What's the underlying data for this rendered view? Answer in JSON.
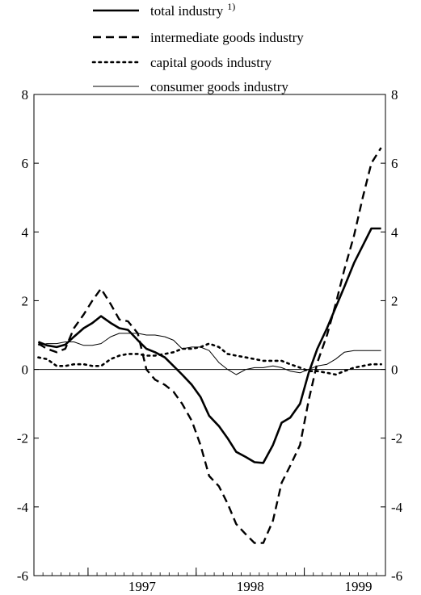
{
  "chart_data": {
    "type": "line",
    "title": "",
    "xlabel": "",
    "ylabel": "",
    "ylim": [
      -6,
      8
    ],
    "yticks": [
      -6,
      -4,
      -2,
      0,
      2,
      4,
      6,
      8
    ],
    "ytick_labels": [
      "-6",
      "-4",
      "-2",
      "0",
      "2",
      "4",
      "6",
      "8"
    ],
    "xrange": [
      1996.5,
      1999.75
    ],
    "xticks": [
      1997,
      1998,
      1999
    ],
    "xtick_labels": [
      "1997",
      "1998",
      "1999"
    ],
    "grid": false,
    "zero_line": true,
    "legend_position": "top",
    "series": [
      {
        "name": "total industry",
        "name_sup": "1)",
        "style": "solid-thick",
        "color": "#000000",
        "x": [
          1996.54,
          1996.62,
          1996.71,
          1996.79,
          1996.87,
          1996.96,
          1997.04,
          1997.12,
          1997.21,
          1997.29,
          1997.37,
          1997.46,
          1997.54,
          1997.62,
          1997.71,
          1997.79,
          1997.87,
          1997.96,
          1998.04,
          1998.12,
          1998.21,
          1998.29,
          1998.37,
          1998.46,
          1998.54,
          1998.62,
          1998.71,
          1998.79,
          1998.87,
          1998.96,
          1999.04,
          1999.12,
          1999.21,
          1999.29,
          1999.37,
          1999.46,
          1999.54,
          1999.62,
          1999.71
        ],
        "values": [
          0.8,
          0.7,
          0.65,
          0.72,
          0.95,
          1.2,
          1.35,
          1.55,
          1.35,
          1.2,
          1.15,
          0.85,
          0.6,
          0.5,
          0.35,
          0.1,
          -0.15,
          -0.45,
          -0.8,
          -1.35,
          -1.65,
          -2.0,
          -2.4,
          -2.55,
          -2.7,
          -2.72,
          -2.2,
          -1.55,
          -1.4,
          -1.0,
          -0.1,
          0.6,
          1.2,
          1.8,
          2.4,
          3.1,
          3.6,
          4.1,
          4.1
        ]
      },
      {
        "name": "intermediate goods industry",
        "style": "dashed",
        "color": "#000000",
        "x": [
          1996.54,
          1996.62,
          1996.71,
          1996.79,
          1996.87,
          1996.96,
          1997.04,
          1997.12,
          1997.21,
          1997.29,
          1997.37,
          1997.46,
          1997.54,
          1997.62,
          1997.71,
          1997.79,
          1997.87,
          1997.96,
          1998.04,
          1998.12,
          1998.21,
          1998.29,
          1998.37,
          1998.46,
          1998.54,
          1998.62,
          1998.71,
          1998.79,
          1998.87,
          1998.96,
          1999.04,
          1999.12,
          1999.21,
          1999.29,
          1999.37,
          1999.46,
          1999.54,
          1999.62,
          1999.71
        ],
        "values": [
          0.75,
          0.6,
          0.5,
          0.6,
          1.2,
          1.6,
          2.0,
          2.35,
          1.9,
          1.45,
          1.4,
          1.05,
          0.0,
          -0.3,
          -0.45,
          -0.65,
          -1.0,
          -1.5,
          -2.2,
          -3.1,
          -3.4,
          -3.9,
          -4.5,
          -4.8,
          -5.05,
          -5.05,
          -4.4,
          -3.3,
          -2.8,
          -2.2,
          -0.9,
          0.2,
          1.0,
          1.9,
          2.9,
          3.9,
          5.0,
          6.0,
          6.45
        ]
      },
      {
        "name": "capital goods industry",
        "style": "dotted",
        "color": "#000000",
        "x": [
          1996.54,
          1996.62,
          1996.71,
          1996.79,
          1996.87,
          1996.96,
          1997.04,
          1997.12,
          1997.21,
          1997.29,
          1997.37,
          1997.46,
          1997.54,
          1997.62,
          1997.71,
          1997.79,
          1997.87,
          1997.96,
          1998.04,
          1998.12,
          1998.21,
          1998.29,
          1998.37,
          1998.46,
          1998.54,
          1998.62,
          1998.71,
          1998.79,
          1998.87,
          1998.96,
          1999.04,
          1999.12,
          1999.21,
          1999.29,
          1999.37,
          1999.46,
          1999.54,
          1999.62,
          1999.71
        ],
        "values": [
          0.35,
          0.3,
          0.1,
          0.1,
          0.15,
          0.15,
          0.1,
          0.1,
          0.3,
          0.4,
          0.45,
          0.45,
          0.4,
          0.4,
          0.45,
          0.5,
          0.6,
          0.6,
          0.65,
          0.75,
          0.65,
          0.45,
          0.4,
          0.35,
          0.3,
          0.25,
          0.25,
          0.25,
          0.15,
          0.05,
          -0.05,
          -0.05,
          -0.1,
          -0.15,
          -0.05,
          0.05,
          0.1,
          0.15,
          0.15
        ]
      },
      {
        "name": "consumer goods industry",
        "style": "solid-thin",
        "color": "#000000",
        "x": [
          1996.54,
          1996.62,
          1996.71,
          1996.79,
          1996.87,
          1996.96,
          1997.04,
          1997.12,
          1997.21,
          1997.29,
          1997.37,
          1997.46,
          1997.54,
          1997.62,
          1997.71,
          1997.79,
          1997.87,
          1997.96,
          1998.04,
          1998.12,
          1998.21,
          1998.29,
          1998.37,
          1998.46,
          1998.54,
          1998.62,
          1998.71,
          1998.79,
          1998.87,
          1998.96,
          1999.04,
          1999.12,
          1999.21,
          1999.29,
          1999.37,
          1999.46,
          1999.54,
          1999.62,
          1999.71
        ],
        "values": [
          0.7,
          0.75,
          0.75,
          0.8,
          0.8,
          0.7,
          0.7,
          0.75,
          0.95,
          1.05,
          1.05,
          1.05,
          1.0,
          1.0,
          0.95,
          0.85,
          0.6,
          0.65,
          0.65,
          0.55,
          0.2,
          0.0,
          -0.15,
          0.0,
          0.05,
          0.05,
          0.1,
          0.05,
          -0.05,
          -0.1,
          0.0,
          0.1,
          0.15,
          0.3,
          0.5,
          0.55,
          0.55,
          0.55,
          0.55
        ]
      }
    ]
  }
}
